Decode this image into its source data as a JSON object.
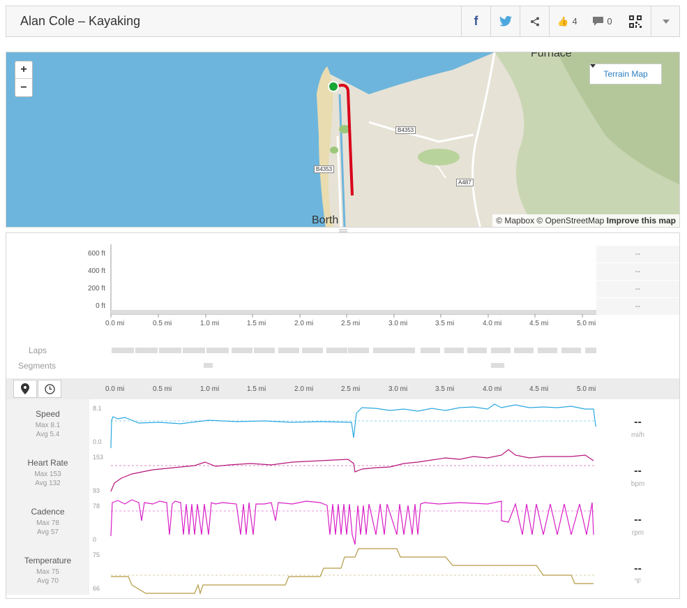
{
  "header": {
    "title": "Alan Cole – Kayaking",
    "likes": "4",
    "comments": "0"
  },
  "map": {
    "zoom_in": "+",
    "zoom_out": "−",
    "terrain_label": "Terrain Map",
    "attribution_1": "© Mapbox © OpenStreetMap",
    "attribution_2": "Improve this map",
    "places": [
      "Furnace",
      "Borth"
    ],
    "roads": [
      "B4353",
      "B4353",
      "A487"
    ]
  },
  "elevation": {
    "y_ticks": [
      "600 ft",
      "400 ft",
      "200 ft",
      "0 ft"
    ],
    "x_ticks": [
      "0.0 mi",
      "0.5 mi",
      "1.0 mi",
      "1.5 mi",
      "2.0 mi",
      "2.5 mi",
      "3.0 mi",
      "3.5 mi",
      "4.0 mi",
      "4.5 mi",
      "5.0 mi"
    ],
    "side_values": [
      "--",
      "--",
      "--",
      "--"
    ]
  },
  "laps_label": "Laps",
  "segments_label": "Segments",
  "axis_ticks": [
    "0.0 mi",
    "0.5 mi",
    "1.0 mi",
    "1.5 mi",
    "2.0 mi",
    "2.5 mi",
    "3.0 mi",
    "3.5 mi",
    "4.0 mi",
    "4.5 mi",
    "5.0 mi"
  ],
  "metrics": [
    {
      "name": "Speed",
      "max": "Max 8.1",
      "avg": "Avg 5.4",
      "top": "8.1",
      "bottom": "0.0",
      "value": "--",
      "unit": "mi/h",
      "color": "#29a8e0"
    },
    {
      "name": "Heart Rate",
      "max": "Max 153",
      "avg": "Avg 132",
      "top": "153",
      "bottom": "93",
      "value": "--",
      "unit": "bpm",
      "color": "#b5137a"
    },
    {
      "name": "Cadence",
      "max": "Max 78",
      "avg": "Avg 57",
      "top": "78",
      "bottom": "0",
      "value": "--",
      "unit": "rpm",
      "color": "#d81dc6"
    },
    {
      "name": "Temperature",
      "max": "Max 75",
      "avg": "Avg 70",
      "top": "75",
      "bottom": "66",
      "value": "--",
      "unit": "°F",
      "color": "#b39a45"
    }
  ]
}
